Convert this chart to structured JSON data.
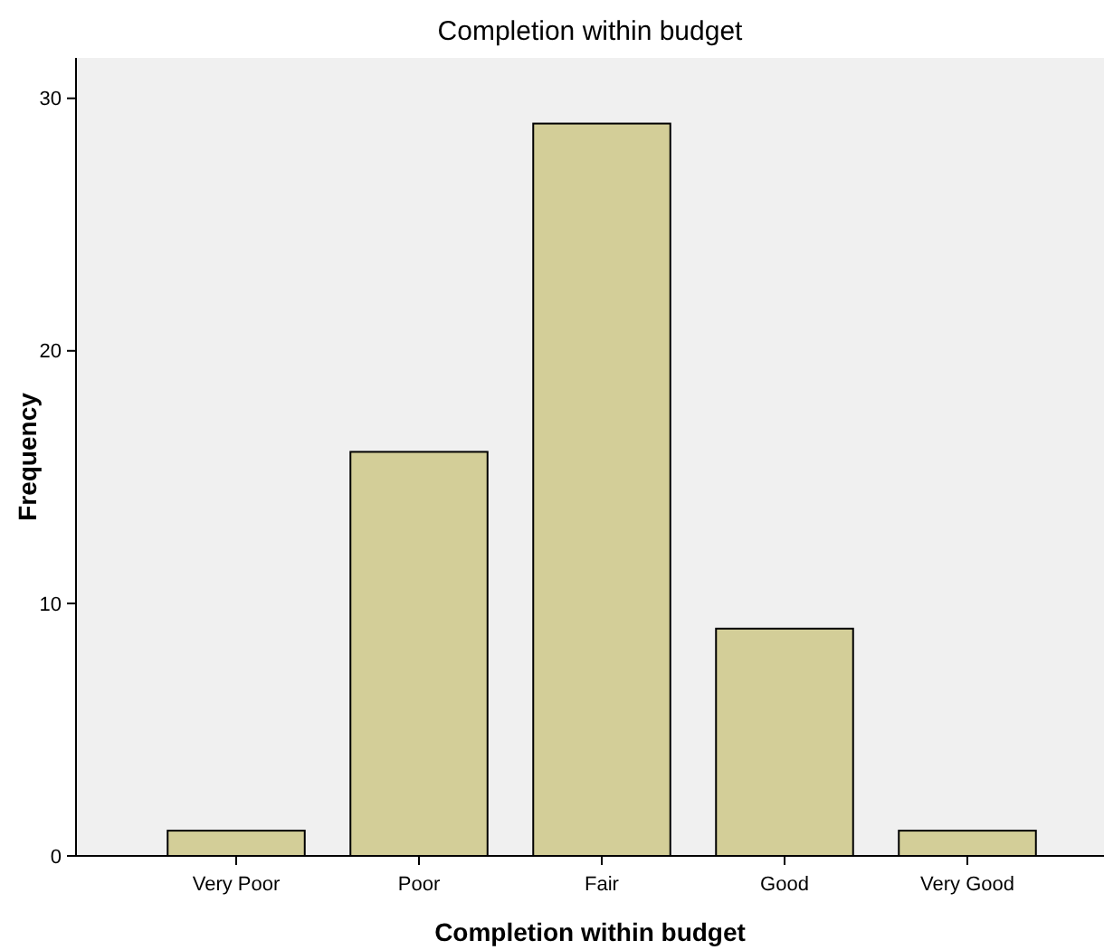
{
  "chart_data": {
    "type": "bar",
    "title": "Completion within budget",
    "xlabel": "Completion within budget",
    "ylabel": "Frequency",
    "categories": [
      "Very Poor",
      "Poor",
      "Fair",
      "Good",
      "Very Good"
    ],
    "values": [
      1,
      16,
      29,
      9,
      1
    ],
    "color": "#d3ce98",
    "ylim": [
      0,
      31.6
    ],
    "yticks": [
      0,
      10,
      20,
      30
    ],
    "grid": false
  }
}
